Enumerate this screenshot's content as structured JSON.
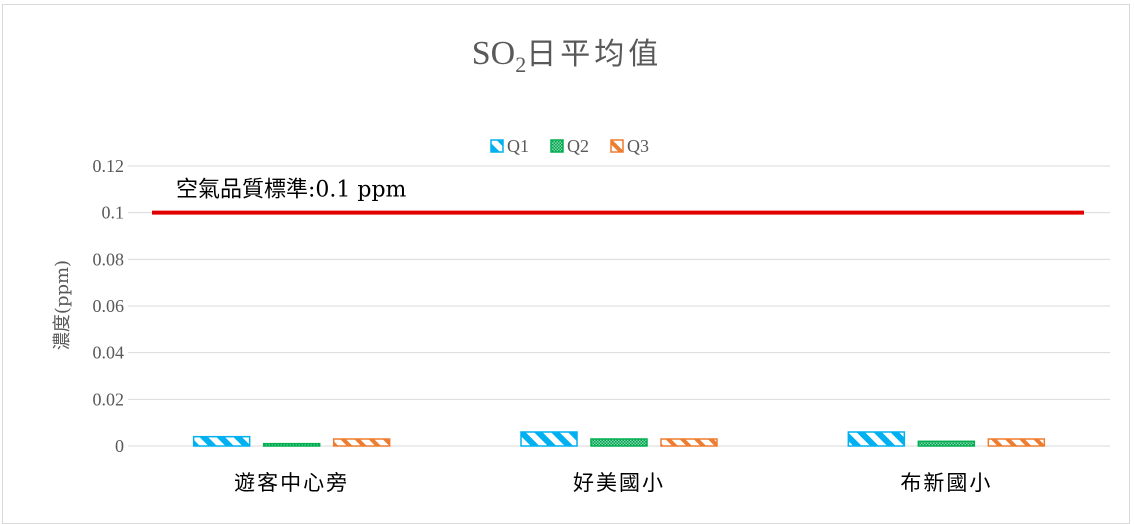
{
  "chart_data": {
    "type": "bar",
    "title_main": "SO",
    "title_sub": "2",
    "title_rest": "日平均值",
    "ylabel": "濃度(ppm)",
    "xlabel": "",
    "ylim": [
      0,
      0.12
    ],
    "yticks": [
      "0",
      "0.02",
      "0.04",
      "0.06",
      "0.08",
      "0.1",
      "0.12"
    ],
    "ytick_values": [
      0,
      0.02,
      0.04,
      0.06,
      0.08,
      0.1,
      0.12
    ],
    "categories": [
      "遊客中心旁",
      "好美國小",
      "布新國小"
    ],
    "series": [
      {
        "name": "Q1",
        "values": [
          0.004,
          0.006,
          0.006
        ],
        "color": "#00b0f0"
      },
      {
        "name": "Q2",
        "values": [
          0.001,
          0.003,
          0.002
        ],
        "color": "#00b050"
      },
      {
        "name": "Q3",
        "values": [
          0.003,
          0.003,
          0.003
        ],
        "color": "#ed7d31"
      }
    ],
    "reference_line": {
      "value": 0.1,
      "label": "空氣品質標準:0.1 ppm",
      "color": "#e00000"
    },
    "grid": true,
    "legend_position": "top"
  }
}
